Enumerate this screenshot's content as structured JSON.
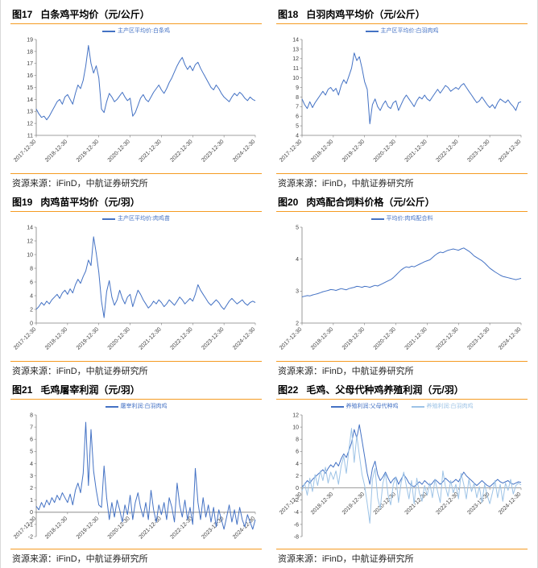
{
  "page": {
    "accent_color": "#F59B22",
    "line_color": "#4472C4",
    "line_color_light": "#9DC3E6",
    "axis_color": "#7f7f7f"
  },
  "charts": [
    {
      "fig_no": "图17",
      "title": "白条鸡平均价（元/公斤）",
      "source": "资源来源：iFinD，中航证券研究所"
    },
    {
      "fig_no": "图18",
      "title": "白羽肉鸡平均价（元/公斤）",
      "source": "资源来源：iFinD，中航证券研究所"
    },
    {
      "fig_no": "图19",
      "title": "肉鸡苗平均价（元/羽）",
      "source": "资源来源：iFinD，中航证券研究所"
    },
    {
      "fig_no": "图20",
      "title": "肉鸡配合饲料价格（元/公斤）",
      "source": "资源来源：iFinD，中航证券研究所"
    },
    {
      "fig_no": "图21",
      "title": "毛鸡屠宰利润（元/羽）",
      "source": "资源来源：iFinD，中航证券研究所"
    },
    {
      "fig_no": "图22",
      "title": "毛鸡、父母代种鸡养殖利润（元/羽）",
      "source": "资源来源：iFinD，中航证券研究所"
    }
  ],
  "chart_data": [
    {
      "type": "line",
      "title": "图17 白条鸡平均价（元/公斤）",
      "legend_position": "top",
      "grid": false,
      "x_sampling": "monthly from 2017-12-30 to 2024-12-30",
      "x_tick_labels": [
        "2017-12-30",
        "2018-12-30",
        "2019-12-30",
        "2020-12-30",
        "2021-12-30",
        "2022-12-30",
        "2023-12-30",
        "2024-12-30"
      ],
      "x_tick_indices": [
        0,
        12,
        24,
        36,
        48,
        60,
        72,
        84
      ],
      "ylim": [
        11,
        19
      ],
      "ytick_step": 1,
      "series": [
        {
          "name": "主产区平均价:白条鸡",
          "color": "#4472C4",
          "values": [
            13.2,
            12.8,
            12.5,
            12.6,
            12.3,
            12.6,
            13.0,
            13.4,
            13.8,
            14.0,
            13.6,
            14.2,
            14.4,
            14.0,
            13.6,
            14.5,
            15.2,
            14.9,
            15.6,
            16.8,
            18.5,
            17.0,
            16.2,
            16.8,
            15.8,
            13.2,
            12.9,
            13.8,
            14.5,
            14.2,
            13.8,
            14.0,
            14.3,
            14.6,
            14.2,
            13.9,
            14.1,
            12.6,
            12.9,
            13.5,
            14.1,
            14.4,
            14.0,
            13.8,
            14.2,
            14.6,
            14.9,
            15.2,
            14.8,
            14.5,
            14.9,
            15.4,
            15.8,
            16.3,
            16.8,
            17.2,
            17.5,
            16.9,
            16.5,
            16.8,
            16.4,
            16.9,
            17.1,
            16.6,
            16.2,
            15.8,
            15.4,
            15.0,
            14.8,
            15.2,
            14.9,
            14.5,
            14.2,
            14.0,
            13.8,
            14.2,
            14.5,
            14.3,
            14.6,
            14.4,
            14.1,
            13.9,
            14.2,
            14.0,
            13.9
          ]
        }
      ]
    },
    {
      "type": "line",
      "title": "图18 白羽肉鸡平均价（元/公斤）",
      "legend_position": "top",
      "grid": false,
      "x_sampling": "monthly from 2017-12-30 to 2024-12-30",
      "x_tick_labels": [
        "2017-12-30",
        "2018-12-30",
        "2019-12-30",
        "2020-12-30",
        "2021-12-30",
        "2022-12-30",
        "2023-12-30",
        "2024-12-30"
      ],
      "x_tick_indices": [
        0,
        12,
        24,
        36,
        48,
        60,
        72,
        84
      ],
      "ylim": [
        4,
        14
      ],
      "ytick_step": 1,
      "series": [
        {
          "name": "主产区平均价:白羽肉鸡",
          "color": "#4472C4",
          "values": [
            7.8,
            7.2,
            6.8,
            7.5,
            6.9,
            7.4,
            7.8,
            8.2,
            8.6,
            8.2,
            8.8,
            9.0,
            8.6,
            8.9,
            8.2,
            9.2,
            9.8,
            9.4,
            10.2,
            11.0,
            12.6,
            11.8,
            12.2,
            11.0,
            9.6,
            8.8,
            5.2,
            7.2,
            7.8,
            7.0,
            6.6,
            7.2,
            7.6,
            7.0,
            6.8,
            7.4,
            7.6,
            6.6,
            7.2,
            7.8,
            8.2,
            7.8,
            7.4,
            7.0,
            7.6,
            8.0,
            7.8,
            8.2,
            7.8,
            7.6,
            8.0,
            8.4,
            8.8,
            8.4,
            8.8,
            9.2,
            9.0,
            8.6,
            8.8,
            9.0,
            8.8,
            9.2,
            9.4,
            9.0,
            8.6,
            8.2,
            7.8,
            7.4,
            7.6,
            8.0,
            7.6,
            7.2,
            6.9,
            7.2,
            6.8,
            7.4,
            7.8,
            7.6,
            7.4,
            7.7,
            7.3,
            7.0,
            6.6,
            7.4,
            7.5
          ]
        }
      ]
    },
    {
      "type": "line",
      "title": "图19 肉鸡苗平均价（元/羽）",
      "legend_position": "top",
      "grid": false,
      "x_sampling": "monthly from 2017-12-30 to 2024-12-30",
      "x_tick_labels": [
        "2017-12-30",
        "2018-12-30",
        "2019-12-30",
        "2020-12-30",
        "2021-12-30",
        "2022-12-30",
        "2023-12-30",
        "2024-12-30"
      ],
      "x_tick_indices": [
        0,
        12,
        24,
        36,
        48,
        60,
        72,
        84
      ],
      "ylim": [
        0,
        14
      ],
      "ytick_step": 2,
      "series": [
        {
          "name": "主产区平均价:肉鸡苗",
          "color": "#4472C4",
          "values": [
            2.0,
            2.4,
            3.0,
            2.6,
            3.2,
            2.8,
            3.4,
            3.8,
            4.2,
            3.6,
            4.4,
            4.8,
            4.2,
            5.0,
            4.4,
            5.6,
            6.4,
            5.8,
            6.8,
            7.6,
            9.2,
            8.4,
            12.6,
            10.2,
            7.4,
            3.2,
            0.8,
            4.6,
            6.2,
            3.8,
            2.6,
            3.4,
            4.8,
            3.6,
            2.8,
            3.8,
            4.2,
            2.4,
            3.6,
            4.8,
            4.2,
            3.4,
            2.8,
            2.2,
            2.6,
            3.2,
            2.8,
            3.4,
            3.0,
            2.4,
            2.8,
            3.4,
            3.0,
            2.6,
            3.2,
            3.8,
            3.4,
            2.8,
            3.2,
            3.6,
            3.2,
            4.2,
            5.6,
            4.8,
            4.2,
            3.6,
            3.0,
            2.6,
            3.0,
            3.4,
            3.0,
            2.4,
            2.0,
            2.6,
            3.2,
            3.6,
            3.2,
            2.8,
            3.1,
            3.4,
            2.9,
            2.6,
            3.0,
            3.2,
            3.0
          ]
        }
      ]
    },
    {
      "type": "line",
      "title": "图20 肉鸡配合饲料价格（元/公斤）",
      "legend_position": "top",
      "grid": false,
      "x_sampling": "monthly from 2017-12-30 to 2024-12-30",
      "x_tick_labels": [
        "2017-12-30",
        "2018-12-30",
        "2019-12-30",
        "2020-12-30",
        "2021-12-30",
        "2022-12-30",
        "2023-12-30",
        "2024-12-30"
      ],
      "x_tick_indices": [
        0,
        12,
        24,
        36,
        48,
        60,
        72,
        84
      ],
      "ylim": [
        2,
        5
      ],
      "ytick_step": 1,
      "series": [
        {
          "name": "平均价:肉鸡配合料",
          "color": "#4472C4",
          "values": [
            2.82,
            2.84,
            2.86,
            2.85,
            2.88,
            2.9,
            2.92,
            2.95,
            2.98,
            3.0,
            3.02,
            3.05,
            3.04,
            3.02,
            3.05,
            3.08,
            3.06,
            3.04,
            3.08,
            3.1,
            3.12,
            3.15,
            3.14,
            3.12,
            3.15,
            3.14,
            3.12,
            3.15,
            3.18,
            3.16,
            3.2,
            3.24,
            3.28,
            3.32,
            3.36,
            3.42,
            3.5,
            3.58,
            3.66,
            3.72,
            3.76,
            3.74,
            3.78,
            3.76,
            3.8,
            3.84,
            3.88,
            3.92,
            3.95,
            3.98,
            4.05,
            4.12,
            4.18,
            4.22,
            4.2,
            4.24,
            4.28,
            4.3,
            4.32,
            4.3,
            4.28,
            4.32,
            4.35,
            4.3,
            4.25,
            4.18,
            4.1,
            4.05,
            4.0,
            3.95,
            3.88,
            3.8,
            3.72,
            3.66,
            3.6,
            3.55,
            3.5,
            3.46,
            3.44,
            3.42,
            3.4,
            3.38,
            3.36,
            3.38,
            3.4
          ]
        }
      ]
    },
    {
      "type": "line",
      "title": "图21 毛鸡屠宰利润（元/羽）",
      "legend_position": "top",
      "grid": false,
      "x_sampling": "monthly from 2017-12-30 to 2024-12-30",
      "x_tick_labels": [
        "2017-12-30",
        "2018-12-30",
        "2019-12-30",
        "2020-12-30",
        "2021-12-30",
        "2022-12-30",
        "2023-12-30",
        "2024-12-30"
      ],
      "x_tick_indices": [
        0,
        12,
        24,
        36,
        48,
        60,
        72,
        84
      ],
      "ylim": [
        -2,
        8
      ],
      "ytick_step": 1,
      "series": [
        {
          "name": "屠宰利润:白羽肉鸡",
          "color": "#4472C4",
          "values": [
            0.5,
            0.2,
            0.8,
            0.4,
            1.0,
            0.6,
            1.2,
            0.8,
            1.4,
            1.0,
            1.6,
            1.2,
            0.8,
            1.5,
            0.6,
            1.8,
            2.4,
            1.6,
            3.2,
            7.4,
            2.2,
            6.8,
            3.4,
            1.8,
            0.6,
            0.4,
            3.8,
            1.2,
            -0.6,
            0.8,
            -0.4,
            1.0,
            0.2,
            -0.8,
            0.6,
            -0.2,
            1.4,
            -0.6,
            0.8,
            1.6,
            0.4,
            -0.4,
            0.8,
            -0.6,
            1.8,
            0.2,
            -0.8,
            0.6,
            -0.2,
            0.8,
            -0.6,
            1.2,
            0.4,
            -0.8,
            2.4,
            0.6,
            -0.4,
            1.0,
            -0.6,
            0.4,
            -1.0,
            3.6,
            0.8,
            -0.6,
            1.2,
            -0.4,
            0.6,
            -0.8,
            0.4,
            -1.2,
            0.2,
            -0.6,
            -1.4,
            -0.4,
            0.6,
            -0.8,
            0.2,
            -1.0,
            0.4,
            -0.6,
            -1.2,
            -0.2,
            -0.8,
            -1.4,
            -0.6
          ]
        }
      ]
    },
    {
      "type": "line",
      "title": "图22 毛鸡、父母代种鸡养殖利润（元/羽）",
      "legend_position": "top",
      "grid": false,
      "x_sampling": "monthly from 2017-12-30 to 2024-12-30",
      "x_tick_labels": [
        "2017-12-30",
        "2018-12-30",
        "2019-12-30",
        "2020-12-30",
        "2021-12-30",
        "2022-12-30",
        "2023-12-30",
        "2024-12-30"
      ],
      "x_tick_indices": [
        0,
        12,
        24,
        36,
        48,
        60,
        72,
        84
      ],
      "ylim": [
        -8,
        12
      ],
      "ytick_step": 2,
      "series": [
        {
          "name": "养殖利润:父母代种鸡",
          "color": "#4472C4",
          "values": [
            0.2,
            0.6,
            1.2,
            0.8,
            1.4,
            1.8,
            2.2,
            2.6,
            3.0,
            2.4,
            3.2,
            3.8,
            3.4,
            4.2,
            3.6,
            4.8,
            5.6,
            5.0,
            6.2,
            7.4,
            9.6,
            8.2,
            10.4,
            7.8,
            5.2,
            2.4,
            0.6,
            3.2,
            4.4,
            2.2,
            1.2,
            1.8,
            2.6,
            1.6,
            0.8,
            1.4,
            1.8,
            0.6,
            1.4,
            2.2,
            1.6,
            0.8,
            0.4,
            0.2,
            0.6,
            1.0,
            0.6,
            1.2,
            0.8,
            0.4,
            0.8,
            1.4,
            1.0,
            0.6,
            1.0,
            1.6,
            1.2,
            0.8,
            1.0,
            1.4,
            1.0,
            1.8,
            2.6,
            2.0,
            1.6,
            1.2,
            0.8,
            0.4,
            0.8,
            1.2,
            0.8,
            0.4,
            0.2,
            0.6,
            1.0,
            1.4,
            1.0,
            0.8,
            1.0,
            1.2,
            0.8,
            0.6,
            0.8,
            1.0,
            0.9
          ]
        },
        {
          "name": "养殖利润:白羽肉鸡",
          "color": "#9DC3E6",
          "values": [
            -0.5,
            0.8,
            -1.2,
            1.6,
            -0.6,
            2.2,
            0.4,
            2.8,
            1.2,
            3.4,
            0.8,
            2.6,
            1.4,
            2.8,
            0.6,
            3.6,
            5.2,
            2.4,
            6.4,
            9.8,
            4.2,
            8.6,
            5.4,
            2.2,
            0.4,
            -2.6,
            -5.8,
            1.4,
            3.2,
            -1.6,
            -3.4,
            0.8,
            2.4,
            -1.2,
            -2.8,
            0.6,
            1.8,
            -2.4,
            0.8,
            2.6,
            0.4,
            -1.8,
            1.2,
            -2.6,
            1.6,
            -0.8,
            -2.2,
            0.4,
            -1.2,
            0.8,
            -1.6,
            1.4,
            -0.6,
            -2.4,
            2.8,
            0.2,
            -1.4,
            1.2,
            -0.8,
            0.6,
            -1.8,
            2.4,
            0.6,
            -1.8,
            1.4,
            -0.6,
            0.8,
            -1.6,
            0.2,
            -2.4,
            0.6,
            -1.2,
            -2.6,
            -0.8,
            1.2,
            -1.6,
            0.6,
            -2.2,
            0.8,
            -0.4,
            1.4,
            -1.0,
            0.4,
            0.8,
            0.5
          ]
        }
      ]
    }
  ]
}
